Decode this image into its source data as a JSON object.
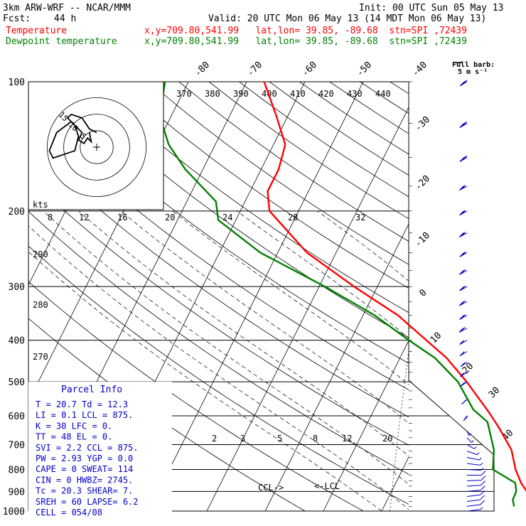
{
  "header": {
    "model": "3km ARW-WRF -- NCAR/MMM",
    "init": "Init: 00 UTC Sun 05 May 13",
    "fcst_label": "Fcst:",
    "fcst_value": "44 h",
    "valid": "Valid: 20 UTC Mon 06 May 13 (14 MDT Mon 06 May 13)"
  },
  "traces": [
    {
      "name": "Temperature",
      "info": "x,y=709.80,541.99   lat,lon= 39.85, -89.68  stn=SPI ,72439",
      "color": "#ff0000"
    },
    {
      "name": "Dewpoint temperature",
      "info": "x,y=709.80,541.99   lat,lon= 39.85, -89.68  stn=SPI ,72439",
      "color": "#008000"
    }
  ],
  "full_barb_label": [
    "Full barb:",
    "5 m s⁻¹"
  ],
  "parcel_info": {
    "title": "Parcel Info",
    "rows": [
      "T  =    20.7  Td =  12.3",
      "LI =     0.1  LCL =  875.",
      "K  =      30  LFC =    0.",
      "TT =      48  EL  =    0.",
      "SVI =    2.2  CCL =  875.",
      "PW =    2.93  YGP =   0.0",
      "CAPE =     0  SWEAT=  114",
      "CIN =      0  HWBZ= 2745.",
      "Tc =    20.3  SHEAR=   7.",
      "SREH =    60  LAPSE=  6.2",
      "CELL = 054/08"
    ]
  },
  "hodograph": {
    "units_label": "kts",
    "ring_labels": [
      "5",
      "10",
      "15"
    ],
    "points_uv": [
      [
        0,
        -8
      ],
      [
        -4,
        -10
      ],
      [
        -8,
        -16
      ],
      [
        -14,
        -18
      ],
      [
        -16,
        -16
      ],
      [
        -12,
        -12
      ],
      [
        -10,
        -6
      ],
      [
        -12,
        2
      ],
      [
        -18,
        4
      ],
      [
        -24,
        6
      ],
      [
        -26,
        2
      ],
      [
        -22,
        -8
      ],
      [
        -14,
        -14
      ],
      [
        -8,
        -8
      ],
      [
        -10,
        -4
      ],
      [
        -7,
        -2
      ],
      [
        -5,
        -5
      ],
      [
        -3,
        -3
      ],
      [
        -4,
        -8
      ]
    ]
  },
  "chart_data": {
    "type": "line",
    "title": "",
    "xlabel": "",
    "ylabel": "",
    "y_scale": "log",
    "pressure_levels": [
      100,
      200,
      300,
      400,
      500,
      600,
      700,
      800,
      900,
      1000
    ],
    "isotherm_labels": [
      -80,
      -70,
      -60,
      -50,
      -40,
      -30,
      -20,
      -10,
      0,
      10,
      20,
      30,
      40
    ],
    "theta_labels_top": [
      370,
      380,
      390,
      400,
      410,
      420,
      430,
      440
    ],
    "theta_labels_left": [
      290,
      280,
      270
    ],
    "mixing_ratio_labels_200": [
      8,
      12,
      16,
      20,
      24,
      28,
      32
    ],
    "mixing_ratio_labels_700": [
      2,
      3,
      5,
      8,
      12,
      20
    ],
    "annotations": [
      "CCL->",
      "<-LCL"
    ],
    "series": [
      {
        "name": "Temperature",
        "color": "#ff0000",
        "points": [
          [
            975,
            20.7
          ],
          [
            935,
            17
          ],
          [
            900,
            13.2
          ],
          [
            860,
            11.5
          ],
          [
            800,
            9.4
          ],
          [
            720,
            7
          ],
          [
            640,
            3
          ],
          [
            590,
            0
          ],
          [
            500,
            -6.5
          ],
          [
            440,
            -12
          ],
          [
            400,
            -17
          ],
          [
            350,
            -24
          ],
          [
            300,
            -34
          ],
          [
            250,
            -45
          ],
          [
            200,
            -55
          ],
          [
            180,
            -57
          ],
          [
            160,
            -57
          ],
          [
            140,
            -58
          ],
          [
            120,
            -62
          ],
          [
            100,
            -67
          ]
        ]
      },
      {
        "name": "Dewpoint temperature",
        "color": "#008000",
        "points": [
          [
            975,
            12.3
          ],
          [
            940,
            11.5
          ],
          [
            900,
            11.4
          ],
          [
            860,
            10.5
          ],
          [
            800,
            5.5
          ],
          [
            720,
            4
          ],
          [
            620,
            0.5
          ],
          [
            580,
            -3
          ],
          [
            500,
            -8
          ],
          [
            440,
            -14
          ],
          [
            400,
            -20
          ],
          [
            350,
            -28
          ],
          [
            300,
            -39
          ],
          [
            250,
            -53
          ],
          [
            210,
            -63
          ],
          [
            190,
            -65
          ],
          [
            160,
            -73
          ],
          [
            140,
            -78
          ],
          [
            120,
            -82
          ],
          [
            100,
            -84
          ]
        ]
      }
    ],
    "wind_barbs_uv_ms": [
      [
        1000,
        -6,
        -2
      ],
      [
        975,
        -8,
        -3
      ],
      [
        950,
        -10,
        -4
      ],
      [
        925,
        -11,
        -4
      ],
      [
        900,
        -11,
        -3
      ],
      [
        875,
        -10,
        -2
      ],
      [
        850,
        -9,
        -1
      ],
      [
        825,
        -8,
        0
      ],
      [
        800,
        -7,
        1
      ],
      [
        775,
        -6,
        2
      ],
      [
        750,
        -5,
        3
      ],
      [
        725,
        -4,
        4
      ],
      [
        700,
        -3,
        5
      ],
      [
        675,
        -2,
        6
      ],
      [
        650,
        -1,
        7
      ],
      [
        600,
        2,
        8
      ],
      [
        550,
        4,
        10
      ],
      [
        500,
        6,
        12
      ],
      [
        475,
        7,
        13
      ],
      [
        450,
        7,
        14
      ],
      [
        425,
        8,
        14
      ],
      [
        400,
        9,
        15
      ],
      [
        375,
        10,
        15
      ],
      [
        350,
        10,
        16
      ],
      [
        325,
        11,
        17
      ],
      [
        300,
        11,
        18
      ],
      [
        275,
        12,
        19
      ],
      [
        250,
        12,
        20
      ],
      [
        225,
        13,
        20
      ],
      [
        200,
        13,
        21
      ],
      [
        175,
        14,
        22
      ],
      [
        150,
        14,
        24
      ],
      [
        125,
        15,
        25
      ],
      [
        100,
        15,
        26
      ]
    ]
  }
}
